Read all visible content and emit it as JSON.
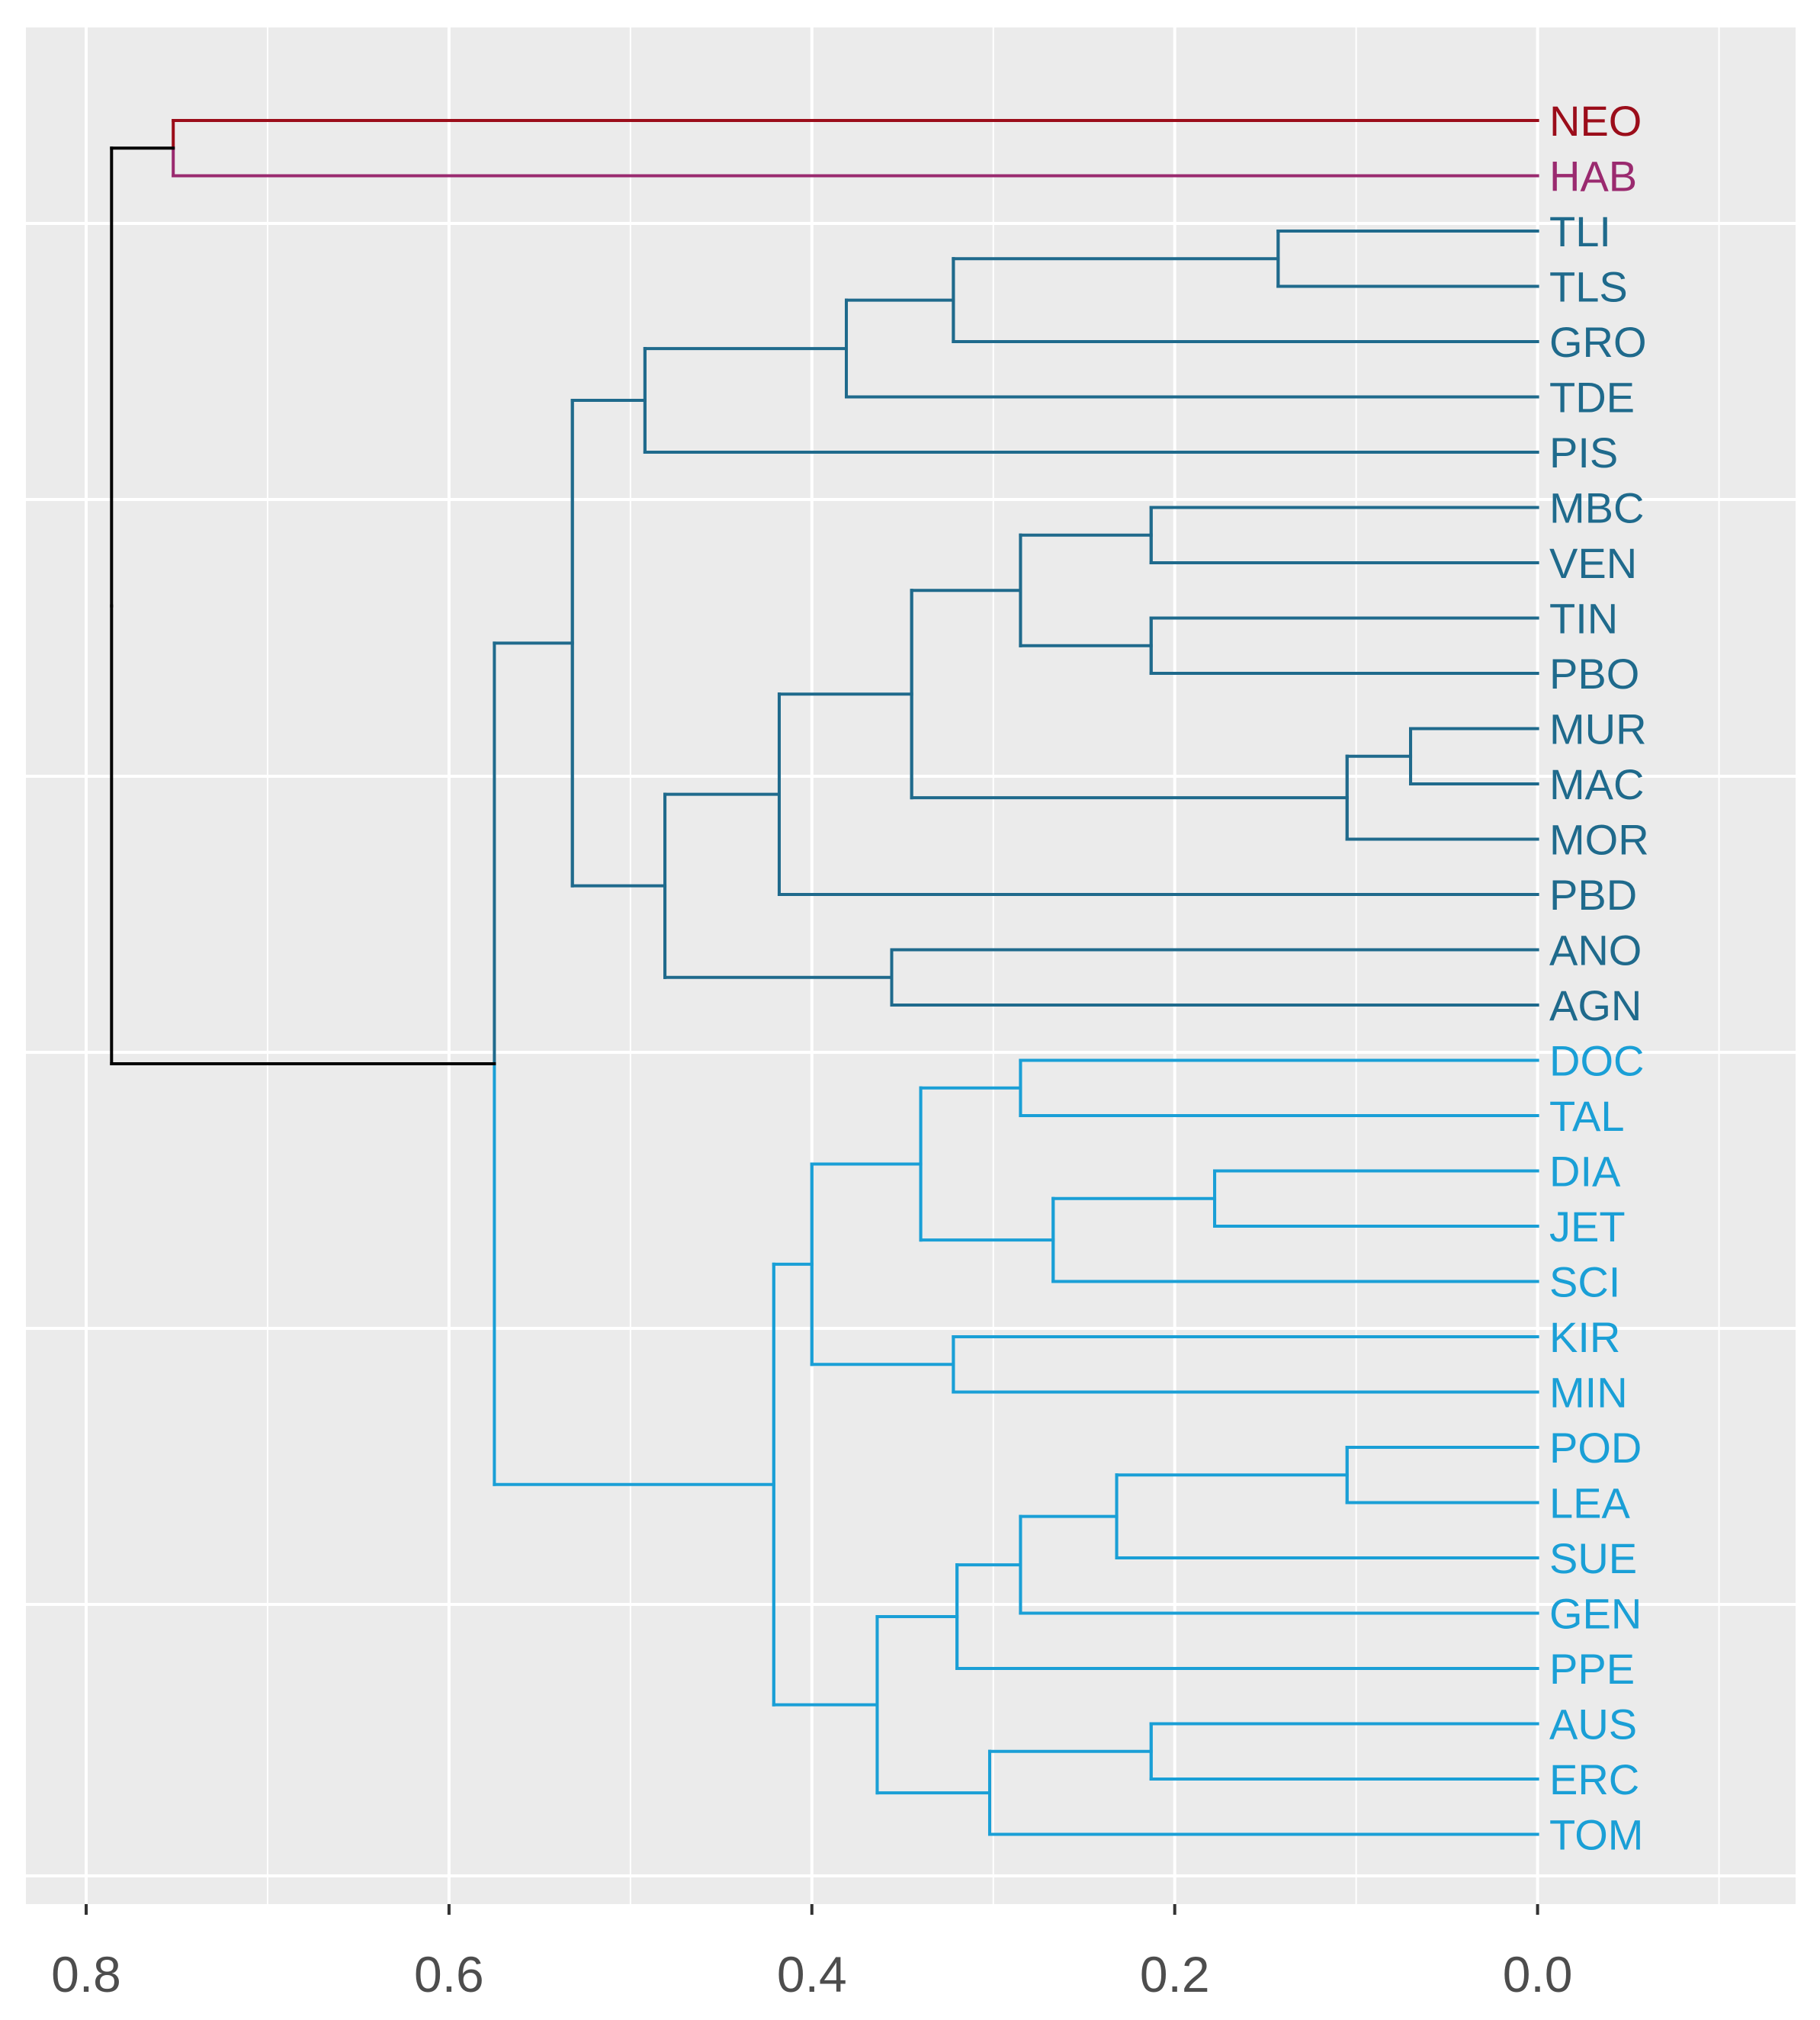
{
  "chart_data": {
    "type": "dendrogram",
    "orientation": "horizontal",
    "xlim": [
      0.83,
      -0.142
    ],
    "x_ticks": [
      0.8,
      0.6,
      0.4,
      0.2,
      0.0
    ],
    "x_tick_labels": [
      "0.8",
      "0.6",
      "0.4",
      "0.2",
      "0.0"
    ],
    "leaves": [
      "NEO",
      "HAB",
      "TLI",
      "TLS",
      "GRO",
      "TDE",
      "PIS",
      "MBC",
      "VEN",
      "TIN",
      "PBO",
      "MUR",
      "MAC",
      "MOR",
      "PBD",
      "ANO",
      "AGN",
      "DOC",
      "TAL",
      "DIA",
      "JET",
      "SCI",
      "KIR",
      "MIN",
      "POD",
      "LEA",
      "SUE",
      "GEN",
      "PPE",
      "AUS",
      "ERC",
      "TOM"
    ],
    "leaf_cluster": [
      0,
      1,
      2,
      2,
      2,
      2,
      2,
      2,
      2,
      2,
      2,
      2,
      2,
      2,
      2,
      2,
      2,
      3,
      3,
      3,
      3,
      3,
      3,
      3,
      3,
      3,
      3,
      3,
      3,
      3,
      3,
      3
    ],
    "cluster_colors": [
      "#9b0d1a",
      "#9a2a6f",
      "#1f6a8c",
      "#1a9fd6"
    ],
    "root_color": "#000000",
    "merges": [
      {
        "left": "L:NEO",
        "right": "L:HAB",
        "height": 0.752
      },
      {
        "left": "L:TLI",
        "right": "L:TLS",
        "height": 0.143
      },
      {
        "left": "M:1",
        "right": "L:GRO",
        "height": 0.322
      },
      {
        "left": "M:2",
        "right": "L:TDE",
        "height": 0.381
      },
      {
        "left": "M:3",
        "right": "L:PIS",
        "height": 0.492
      },
      {
        "left": "L:MBC",
        "right": "L:VEN",
        "height": 0.213
      },
      {
        "left": "L:TIN",
        "right": "L:PBO",
        "height": 0.213
      },
      {
        "left": "M:5",
        "right": "M:6",
        "height": 0.285
      },
      {
        "left": "L:MUR",
        "right": "L:MAC",
        "height": 0.07
      },
      {
        "left": "M:8",
        "right": "L:MOR",
        "height": 0.105
      },
      {
        "left": "M:7",
        "right": "M:9",
        "height": 0.345
      },
      {
        "left": "M:10",
        "right": "L:PBD",
        "height": 0.418
      },
      {
        "left": "L:ANO",
        "right": "L:AGN",
        "height": 0.356
      },
      {
        "left": "M:11",
        "right": "M:12",
        "height": 0.481
      },
      {
        "left": "M:4",
        "right": "M:13",
        "height": 0.532
      },
      {
        "left": "L:DOC",
        "right": "L:TAL",
        "height": 0.285
      },
      {
        "left": "L:DIA",
        "right": "L:JET",
        "height": 0.178
      },
      {
        "left": "M:16",
        "right": "L:SCI",
        "height": 0.267
      },
      {
        "left": "M:15",
        "right": "M:17",
        "height": 0.34
      },
      {
        "left": "L:KIR",
        "right": "L:MIN",
        "height": 0.322
      },
      {
        "left": "M:18",
        "right": "M:19",
        "height": 0.4
      },
      {
        "left": "L:POD",
        "right": "L:LEA",
        "height": 0.105
      },
      {
        "left": "M:21",
        "right": "L:SUE",
        "height": 0.232
      },
      {
        "left": "M:22",
        "right": "L:GEN",
        "height": 0.285
      },
      {
        "left": "M:23",
        "right": "L:PPE",
        "height": 0.32
      },
      {
        "left": "L:AUS",
        "right": "L:ERC",
        "height": 0.213
      },
      {
        "left": "M:25",
        "right": "L:TOM",
        "height": 0.302
      },
      {
        "left": "M:24",
        "right": "M:26",
        "height": 0.364
      },
      {
        "left": "M:20",
        "right": "M:27",
        "height": 0.421
      },
      {
        "left": "M:14",
        "right": "M:28",
        "height": 0.575
      },
      {
        "left": "M:0",
        "right": "M:29",
        "height": 0.786
      }
    ],
    "title": "",
    "xlabel": "",
    "ylabel": "",
    "grid": true,
    "background": "#ebebeb"
  }
}
